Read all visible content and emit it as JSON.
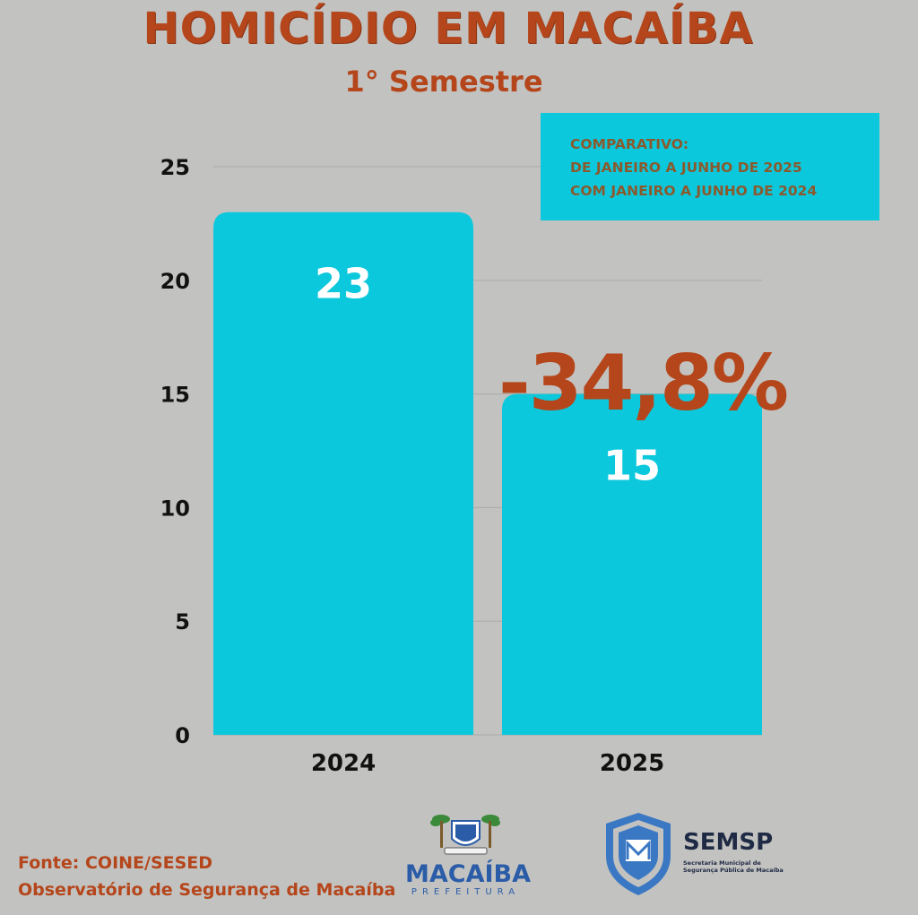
{
  "header": {
    "title": "HOMICÍDIO EM MACAÍBA",
    "subtitle": "1° Semestre"
  },
  "comparison_box": {
    "lines": [
      "COMPARATIVO:",
      "DE JANEIRO A JUNHO DE 2025",
      "COM JANEIRO A JUNHO DE 2024"
    ]
  },
  "change_label": "-34,8%",
  "chart_data": {
    "type": "bar",
    "categories": [
      "2024",
      "2025"
    ],
    "values": [
      23,
      15
    ],
    "bar_labels": [
      "23",
      "15"
    ],
    "yticks": [
      0,
      5,
      10,
      15,
      20,
      25
    ],
    "ylim": [
      0,
      25
    ],
    "grid": true,
    "bar_color": "#0cc8dc"
  },
  "footer": {
    "source": "Fonte: COINE/SESED",
    "observatory": "Observatório de Segurança de Macaíba"
  },
  "logos": {
    "macaiba_word": "MACAÍBA",
    "macaiba_sub": "PREFEITURA",
    "semsp_word": "SEMSP",
    "semsp_sub": "Secretaria Municipal de Segurança Pública de Macaíba"
  },
  "colors": {
    "accent": "#b5461b",
    "bar": "#0cc8dc",
    "background": "#c2c2c0"
  }
}
